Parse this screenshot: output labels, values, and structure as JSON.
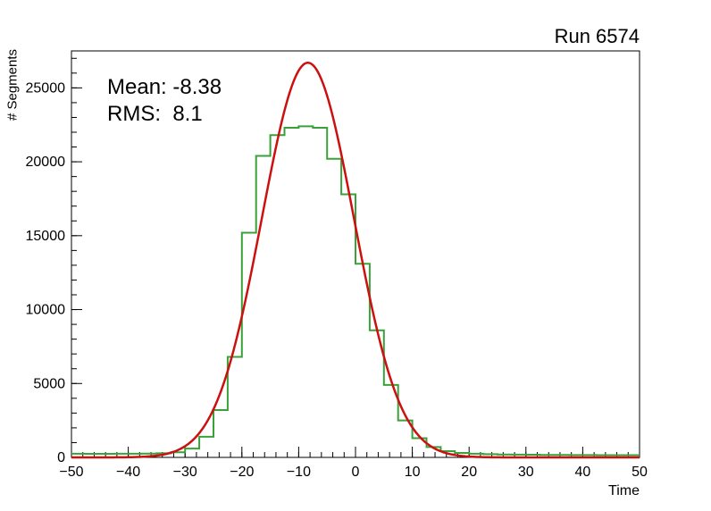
{
  "header": {
    "title": "Run 6574"
  },
  "stats": {
    "mean": "Mean: -8.38",
    "rms": "RMS:  8.1"
  },
  "axes": {
    "x_label": "Time",
    "y_label": "# Segments"
  },
  "chart_data": {
    "type": "bar",
    "subtype": "step-histogram-with-gaussian-fit",
    "title": "Run 6574",
    "xlabel": "Time",
    "ylabel": "# Segments",
    "xlim": [
      -50,
      50
    ],
    "ylim": [
      0,
      27500
    ],
    "x_ticks": [
      -50,
      -40,
      -30,
      -20,
      -10,
      0,
      10,
      20,
      30,
      40,
      50
    ],
    "x_minor_step": 2,
    "y_ticks": [
      0,
      5000,
      10000,
      15000,
      20000,
      25000
    ],
    "y_minor_step": 1000,
    "bin_start": -50,
    "bin_width": 2.5,
    "bin_values": [
      250,
      240,
      240,
      250,
      250,
      260,
      280,
      350,
      600,
      1400,
      3200,
      6800,
      15200,
      20400,
      21800,
      22300,
      22400,
      22300,
      20200,
      17800,
      13100,
      8600,
      4900,
      2500,
      1300,
      700,
      420,
      300,
      250,
      220,
      200,
      190,
      180,
      170,
      170,
      160,
      160,
      150,
      150,
      150
    ],
    "fit": {
      "shape": "gaussian",
      "amplitude": 26700,
      "mean": -8.38,
      "sigma": 8.1
    },
    "annotations": {
      "mean": "Mean: -8.38",
      "rms": "RMS:  8.1"
    },
    "legend": null,
    "grid": false,
    "colors": {
      "histogram": "#3aa03a",
      "fit": "#cc1010",
      "frame": "#000000",
      "background": "#ffffff",
      "text": "#000000"
    }
  }
}
